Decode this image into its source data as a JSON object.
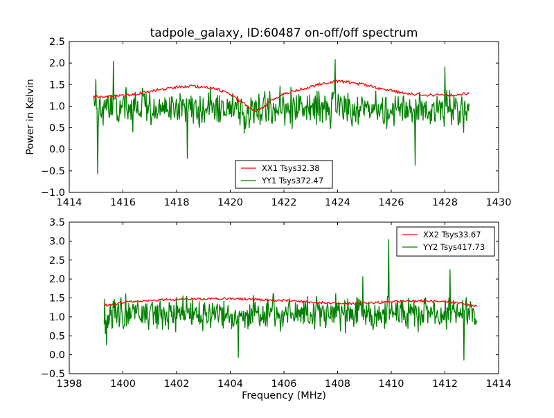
{
  "figure_title": "tadpole_galaxy, ID:60487 on-off/off spectrum",
  "colors": {
    "xx": "#ff0000",
    "yy": "#008000",
    "axes": "#000000",
    "background": "#ffffff"
  },
  "chart_data": [
    {
      "type": "line",
      "title": "tadpole_galaxy, ID:60487 on-off/off spectrum",
      "xlabel": "",
      "ylabel": "Power in Kelvin",
      "xlim": [
        1414,
        1430
      ],
      "ylim": [
        -1.0,
        2.5
      ],
      "xticks": [
        "1414",
        "1416",
        "1418",
        "1420",
        "1422",
        "1424",
        "1426",
        "1428",
        "1430"
      ],
      "yticks": [
        "−1.0",
        "−0.5",
        "0.0",
        "0.5",
        "1.0",
        "1.5",
        "2.0",
        "2.5"
      ],
      "legend_position": "lower-center",
      "grid": false,
      "series": [
        {
          "name": "XX1 Tsys32.38",
          "color": "#ff0000",
          "x": [
            1414.9,
            1415.5,
            1416.0,
            1416.5,
            1417.0,
            1417.5,
            1418.0,
            1418.5,
            1419.0,
            1419.5,
            1420.0,
            1420.3,
            1420.6,
            1420.9,
            1421.2,
            1421.5,
            1422.0,
            1422.5,
            1423.0,
            1423.5,
            1424.0,
            1424.5,
            1425.0,
            1425.5,
            1426.0,
            1426.5,
            1427.0,
            1427.5,
            1428.0,
            1428.5,
            1428.9
          ],
          "y": [
            1.22,
            1.23,
            1.25,
            1.28,
            1.35,
            1.4,
            1.44,
            1.47,
            1.44,
            1.4,
            1.28,
            1.14,
            1.02,
            0.88,
            0.95,
            1.12,
            1.28,
            1.37,
            1.45,
            1.53,
            1.58,
            1.55,
            1.5,
            1.42,
            1.36,
            1.3,
            1.27,
            1.26,
            1.25,
            1.27,
            1.3
          ]
        },
        {
          "name": "YY1 Tsys372.47",
          "color": "#008000",
          "x_range": [
            1414.9,
            1428.9
          ],
          "mean_level": 0.95,
          "noise_amplitude": 0.45,
          "features": [
            {
              "x": 1415.05,
              "y": -0.58
            },
            {
              "x": 1415.0,
              "y": 1.63
            },
            {
              "x": 1415.65,
              "y": 2.05
            },
            {
              "x": 1418.4,
              "y": -0.22
            },
            {
              "x": 1423.9,
              "y": 2.09
            },
            {
              "x": 1426.9,
              "y": -0.38
            },
            {
              "x": 1428.0,
              "y": 1.92
            }
          ]
        }
      ]
    },
    {
      "type": "line",
      "title": "",
      "xlabel": "Frequency (MHz)",
      "ylabel": "",
      "xlim": [
        1398,
        1414
      ],
      "ylim": [
        -0.5,
        3.5
      ],
      "xticks": [
        "1398",
        "1400",
        "1402",
        "1404",
        "1406",
        "1408",
        "1410",
        "1412",
        "1414"
      ],
      "yticks": [
        "−0.5",
        "0.0",
        "0.5",
        "1.0",
        "1.5",
        "2.0",
        "2.5",
        "3.0",
        "3.5"
      ],
      "legend_position": "upper-right",
      "grid": false,
      "series": [
        {
          "name": "XX2 Tsys33.67",
          "color": "#ff0000",
          "x": [
            1399.3,
            1400.0,
            1400.5,
            1401.0,
            1401.5,
            1402.0,
            1402.5,
            1403.0,
            1403.5,
            1404.0,
            1404.5,
            1405.0,
            1405.5,
            1406.0,
            1406.5,
            1407.0,
            1407.5,
            1408.0,
            1408.5,
            1409.0,
            1409.5,
            1410.0,
            1410.5,
            1411.0,
            1411.5,
            1412.0,
            1412.5,
            1413.2
          ],
          "y": [
            1.3,
            1.38,
            1.41,
            1.43,
            1.45,
            1.46,
            1.47,
            1.47,
            1.48,
            1.48,
            1.47,
            1.46,
            1.44,
            1.43,
            1.41,
            1.39,
            1.37,
            1.35,
            1.35,
            1.36,
            1.38,
            1.4,
            1.41,
            1.42,
            1.42,
            1.4,
            1.37,
            1.28
          ]
        },
        {
          "name": "YY2 Tsys417.73",
          "color": "#008000",
          "x_range": [
            1399.3,
            1413.2
          ],
          "mean_level": 1.1,
          "noise_amplitude": 0.45,
          "features": [
            {
              "x": 1399.4,
              "y": 0.25
            },
            {
              "x": 1404.3,
              "y": -0.08
            },
            {
              "x": 1408.95,
              "y": 2.07
            },
            {
              "x": 1409.9,
              "y": 3.05
            },
            {
              "x": 1412.7,
              "y": -0.15
            },
            {
              "x": 1412.2,
              "y": 2.25
            }
          ]
        }
      ]
    }
  ]
}
